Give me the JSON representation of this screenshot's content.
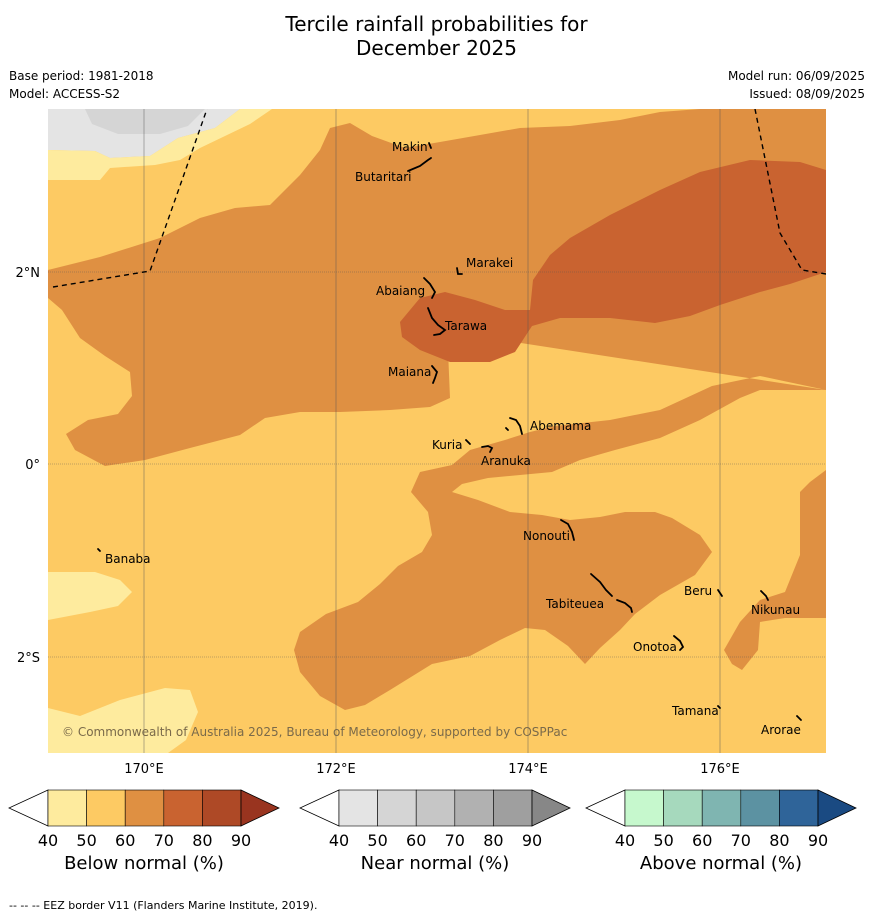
{
  "title_line1": "Tercile rainfall probabilities for",
  "title_line2": "December 2025",
  "base_period": "Base period: 1981-2018",
  "model": "Model: ACCESS-S2",
  "model_run": "Model run: 06/09/2025",
  "issued": "Issued: 08/09/2025",
  "copyright": "© Commonwealth of Australia 2025, Bureau of Meteorology, supported by COSPPac",
  "footer": "-- -- -- EEZ border V11 (Flanders Marine Institute, 2019).",
  "lon_ticks": [
    "170°E",
    "172°E",
    "174°E",
    "176°E"
  ],
  "lat_ticks": [
    "2°N",
    "0°",
    "2°S"
  ],
  "places": [
    {
      "name": "Makin"
    },
    {
      "name": "Butaritari"
    },
    {
      "name": "Marakei"
    },
    {
      "name": "Abaiang"
    },
    {
      "name": "Tarawa"
    },
    {
      "name": "Maiana"
    },
    {
      "name": "Abemama"
    },
    {
      "name": "Kuria"
    },
    {
      "name": "Aranuka"
    },
    {
      "name": "Nonouti"
    },
    {
      "name": "Banaba"
    },
    {
      "name": "Tabiteuea"
    },
    {
      "name": "Beru"
    },
    {
      "name": "Nikunau"
    },
    {
      "name": "Onotoa"
    },
    {
      "name": "Tamana"
    },
    {
      "name": "Arorae"
    }
  ],
  "colorbars": [
    {
      "label": "Below normal (%)",
      "colors": [
        "#feeb9e",
        "#fdca63",
        "#df9042",
        "#c96330",
        "#ae4926"
      ],
      "over_color": "#99341f",
      "ticks": [
        "40",
        "50",
        "60",
        "70",
        "80",
        "90"
      ]
    },
    {
      "label": "Near normal (%)",
      "colors": [
        "#e4e4e4",
        "#d5d5d5",
        "#c6c6c6",
        "#b1b1b1",
        "#9f9f9f"
      ],
      "over_color": "#878787",
      "ticks": [
        "40",
        "50",
        "60",
        "70",
        "80",
        "90"
      ]
    },
    {
      "label": "Above normal (%)",
      "colors": [
        "#c6f8cd",
        "#a6d9bd",
        "#7fb5b1",
        "#5c92a2",
        "#2f6499"
      ],
      "over_color": "#1a4a82",
      "ticks": [
        "40",
        "50",
        "60",
        "70",
        "80",
        "90"
      ]
    }
  ]
}
